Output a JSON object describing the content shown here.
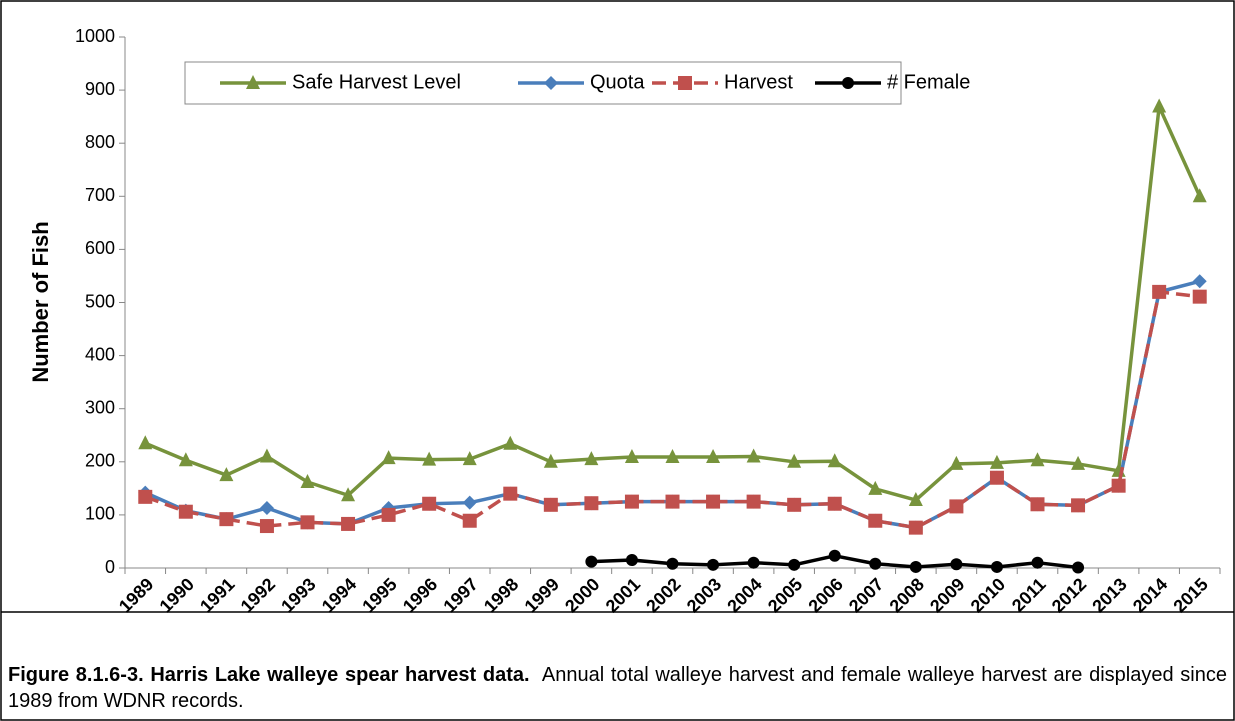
{
  "chart_data": {
    "type": "line",
    "ylabel": "Number of Fish",
    "categories": [
      "1989",
      "1990",
      "1991",
      "1992",
      "1993",
      "1994",
      "1995",
      "1996",
      "1997",
      "1998",
      "1999",
      "2000",
      "2001",
      "2002",
      "2003",
      "2004",
      "2005",
      "2006",
      "2007",
      "2008",
      "2009",
      "2010",
      "2011",
      "2012",
      "2013",
      "2014",
      "2015"
    ],
    "series": [
      {
        "name": "Safe Harvest Level",
        "color": "#77933c",
        "marker": "triangle",
        "dash": false,
        "values": [
          235,
          203,
          175,
          210,
          162,
          137,
          207,
          204,
          205,
          234,
          200,
          205,
          209,
          209,
          209,
          210,
          200,
          201,
          149,
          128,
          196,
          198,
          203,
          196,
          183,
          869,
          700
        ]
      },
      {
        "name": "Quota",
        "color": "#4a7ebb",
        "marker": "diamond",
        "dash": false,
        "values": [
          142,
          108,
          92,
          113,
          86,
          83,
          113,
          121,
          123,
          140,
          119,
          122,
          125,
          125,
          125,
          125,
          119,
          121,
          89,
          76,
          116,
          170,
          120,
          118,
          155,
          520,
          540
        ]
      },
      {
        "name": "Harvest",
        "color": "#c0504d",
        "marker": "square",
        "dash": true,
        "values": [
          134,
          106,
          92,
          79,
          86,
          83,
          100,
          121,
          89,
          140,
          119,
          122,
          125,
          125,
          125,
          125,
          119,
          121,
          89,
          76,
          116,
          170,
          120,
          118,
          155,
          520,
          511
        ]
      },
      {
        "name": "# Female",
        "color": "#000000",
        "marker": "circle",
        "dash": false,
        "values": [
          null,
          null,
          null,
          null,
          null,
          null,
          null,
          null,
          null,
          null,
          null,
          12,
          15,
          8,
          6,
          10,
          6,
          23,
          8,
          2,
          7,
          2,
          10,
          1,
          null,
          null,
          null
        ]
      }
    ],
    "ylim": [
      0,
      1000
    ],
    "yticks": [
      0,
      100,
      200,
      300,
      400,
      500,
      600,
      700,
      800,
      900,
      1000
    ],
    "grid": false
  },
  "caption": {
    "label": "Figure 8.1.6-3.  Harris Lake walleye spear harvest data.",
    "text": "Annual total walleye harvest and female walleye harvest are displayed since 1989 from WDNR records."
  }
}
